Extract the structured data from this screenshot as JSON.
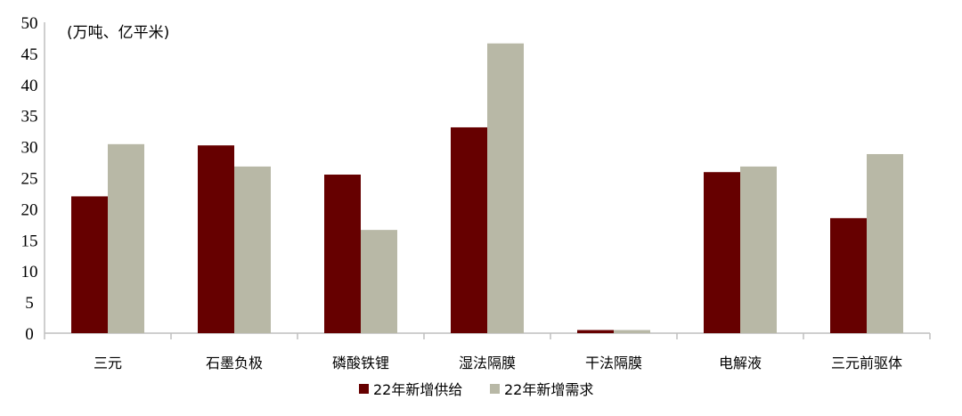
{
  "chart_data": {
    "type": "bar",
    "title": "",
    "unit_label": "(万吨、亿平米)",
    "xlabel": "",
    "ylabel": "",
    "ylim": [
      0,
      50
    ],
    "yticks": [
      0,
      5,
      10,
      15,
      20,
      25,
      30,
      35,
      40,
      45,
      50
    ],
    "grid": false,
    "legend_position": "bottom",
    "categories": [
      "三元",
      "石墨负极",
      "磷酸铁锂",
      "湿法隔膜",
      "干法隔膜",
      "电解液",
      "三元前驱体"
    ],
    "series": [
      {
        "name": "22年新增供给",
        "color": "#660000",
        "values": [
          22.0,
          30.2,
          25.5,
          33.1,
          0.5,
          25.9,
          18.5
        ]
      },
      {
        "name": "22年新增需求",
        "color": "#b8b8a6",
        "values": [
          30.4,
          26.8,
          16.6,
          46.6,
          0.5,
          26.8,
          28.8
        ]
      }
    ]
  }
}
